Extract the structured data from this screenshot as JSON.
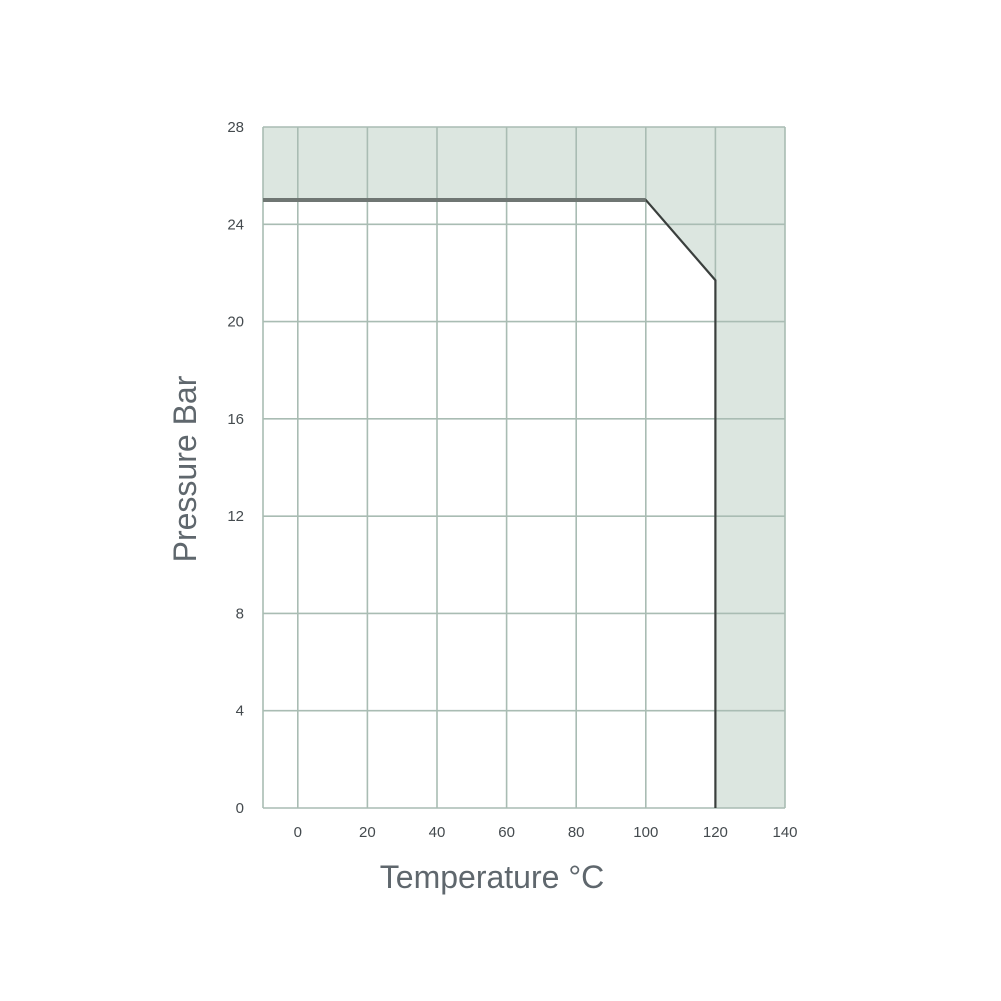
{
  "chart_data": {
    "type": "line",
    "title": "",
    "xlabel": "Temperature °C",
    "ylabel": "Pressure Bar",
    "xlim": [
      -10,
      140
    ],
    "ylim": [
      0,
      28
    ],
    "xticks": [
      0,
      20,
      40,
      60,
      80,
      100,
      120,
      140
    ],
    "yticks": [
      0,
      4,
      8,
      12,
      16,
      20,
      24,
      28
    ],
    "grid": true,
    "legend": "none",
    "series": [
      {
        "x": [
          -10,
          100,
          120,
          120
        ],
        "y": [
          25,
          25,
          21.7,
          0
        ]
      }
    ],
    "colors": {
      "unsafe_region": "#dce6e0",
      "safe_region": "#ffffff",
      "grid": "#a9bcb3",
      "limit_line": "#3a3f3d",
      "text": "#444a4e"
    }
  }
}
